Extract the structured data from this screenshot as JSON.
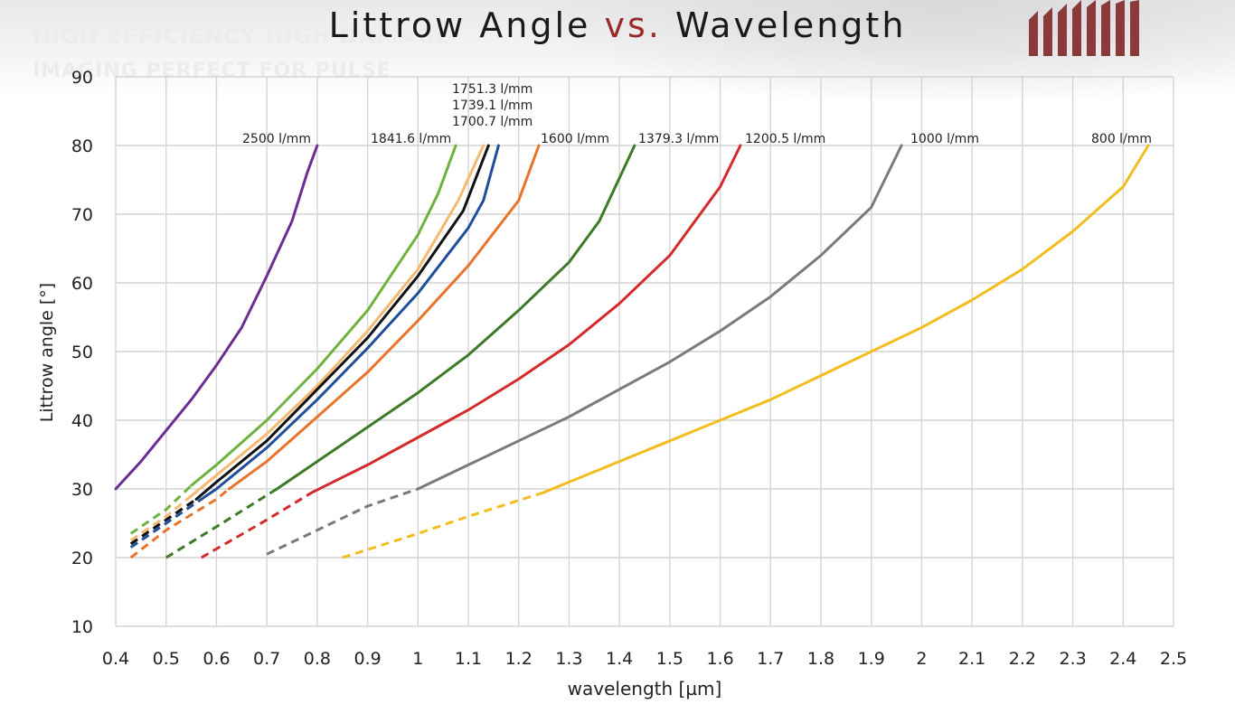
{
  "header": {
    "tagline_line1": "",
    "tagline_line2": "HIGH EFFICIENCY HIGH DAMAGE",
    "tagline_line3": "IMAGING PERFECT FOR PULSE"
  },
  "chart_data": {
    "type": "line",
    "title_part1": "Littrow Angle ",
    "title_vs": "vs.",
    "title_part2": " Wavelength",
    "xlabel": "wavelength [µm]",
    "ylabel": "Littrow angle [°]",
    "xlim": [
      0.4,
      2.5
    ],
    "ylim": [
      10,
      90
    ],
    "x_ticks": [
      0.4,
      0.5,
      0.6,
      0.7,
      0.8,
      0.9,
      1,
      1.1,
      1.2,
      1.3,
      1.4,
      1.5,
      1.6,
      1.7,
      1.8,
      1.9,
      2,
      2.1,
      2.2,
      2.3,
      2.4,
      2.5
    ],
    "y_ticks": [
      10,
      20,
      30,
      40,
      50,
      60,
      70,
      80,
      90
    ],
    "grid": true,
    "series": [
      {
        "name": "2500 l/mm",
        "color": "#6a2d91",
        "dashed": [],
        "solid": [
          [
            0.4,
            30
          ],
          [
            0.45,
            34
          ],
          [
            0.5,
            38.5
          ],
          [
            0.55,
            43
          ],
          [
            0.6,
            48
          ],
          [
            0.65,
            53.5
          ],
          [
            0.7,
            61
          ],
          [
            0.75,
            69
          ],
          [
            0.78,
            76
          ],
          [
            0.8,
            80
          ]
        ]
      },
      {
        "name": "1841.6 l/mm",
        "color": "#6db33f",
        "dashed": [
          [
            0.43,
            23.5
          ],
          [
            0.5,
            27
          ],
          [
            0.55,
            30.5
          ]
        ],
        "solid": [
          [
            0.55,
            30.5
          ],
          [
            0.6,
            33.5
          ],
          [
            0.7,
            40
          ],
          [
            0.8,
            47.5
          ],
          [
            0.9,
            56
          ],
          [
            1.0,
            67
          ],
          [
            1.04,
            73
          ],
          [
            1.075,
            80
          ]
        ]
      },
      {
        "name": "1751.3 l/mm",
        "color": "#f5b972",
        "dashed": [
          [
            0.43,
            22.5
          ],
          [
            0.5,
            26
          ],
          [
            0.55,
            29
          ]
        ],
        "solid": [
          [
            0.55,
            29
          ],
          [
            0.6,
            32
          ],
          [
            0.7,
            38
          ],
          [
            0.8,
            45
          ],
          [
            0.9,
            53
          ],
          [
            1.0,
            62
          ],
          [
            1.08,
            72
          ],
          [
            1.13,
            80
          ]
        ]
      },
      {
        "name": "1739.1 l/mm",
        "color": "#111111",
        "dashed": [
          [
            0.43,
            22
          ],
          [
            0.5,
            25.5
          ],
          [
            0.56,
            28.5
          ]
        ],
        "solid": [
          [
            0.56,
            28.5
          ],
          [
            0.6,
            31
          ],
          [
            0.7,
            37
          ],
          [
            0.8,
            44.5
          ],
          [
            0.9,
            52
          ],
          [
            1.0,
            61
          ],
          [
            1.09,
            70.5
          ],
          [
            1.14,
            80
          ]
        ]
      },
      {
        "name": "1700.7 l/mm",
        "color": "#1f4e9c",
        "dashed": [
          [
            0.43,
            21.5
          ],
          [
            0.5,
            25
          ],
          [
            0.57,
            28.5
          ]
        ],
        "solid": [
          [
            0.57,
            28.5
          ],
          [
            0.6,
            30
          ],
          [
            0.7,
            36
          ],
          [
            0.8,
            43
          ],
          [
            0.9,
            50.5
          ],
          [
            1.0,
            58.5
          ],
          [
            1.1,
            68
          ],
          [
            1.13,
            72
          ],
          [
            1.16,
            80
          ]
        ]
      },
      {
        "name": "1600 l/mm",
        "color": "#e8742a",
        "dashed": [
          [
            0.43,
            20
          ],
          [
            0.5,
            24
          ],
          [
            0.6,
            28.5
          ],
          [
            0.625,
            30
          ]
        ],
        "solid": [
          [
            0.625,
            30
          ],
          [
            0.7,
            34
          ],
          [
            0.8,
            40.5
          ],
          [
            0.9,
            47
          ],
          [
            1.0,
            54.5
          ],
          [
            1.1,
            62.5
          ],
          [
            1.2,
            72
          ],
          [
            1.24,
            80
          ]
        ]
      },
      {
        "name": "1379.3 l/mm",
        "color": "#3d7a27",
        "dashed": [
          [
            0.5,
            20
          ],
          [
            0.6,
            24.5
          ],
          [
            0.72,
            30
          ]
        ],
        "solid": [
          [
            0.72,
            30
          ],
          [
            0.8,
            34
          ],
          [
            0.9,
            39
          ],
          [
            1.0,
            44
          ],
          [
            1.1,
            49.5
          ],
          [
            1.2,
            56
          ],
          [
            1.3,
            63
          ],
          [
            1.36,
            69
          ],
          [
            1.43,
            80
          ]
        ]
      },
      {
        "name": "1200.5 l/mm",
        "color": "#d42a2a",
        "dashed": [
          [
            0.57,
            20
          ],
          [
            0.7,
            25.5
          ],
          [
            0.79,
            29.5
          ]
        ],
        "solid": [
          [
            0.79,
            29.5
          ],
          [
            0.9,
            33.5
          ],
          [
            1.0,
            37.5
          ],
          [
            1.1,
            41.5
          ],
          [
            1.2,
            46
          ],
          [
            1.3,
            51
          ],
          [
            1.4,
            57
          ],
          [
            1.5,
            64
          ],
          [
            1.6,
            74
          ],
          [
            1.64,
            80
          ]
        ]
      },
      {
        "name": "1000 l/mm",
        "color": "#7a7a7a",
        "dashed": [
          [
            0.7,
            20.5
          ],
          [
            0.8,
            24
          ],
          [
            0.9,
            27.5
          ],
          [
            1.0,
            30
          ]
        ],
        "solid": [
          [
            1.0,
            30
          ],
          [
            1.1,
            33.5
          ],
          [
            1.2,
            37
          ],
          [
            1.3,
            40.5
          ],
          [
            1.4,
            44.5
          ],
          [
            1.5,
            48.5
          ],
          [
            1.6,
            53
          ],
          [
            1.7,
            58
          ],
          [
            1.8,
            64
          ],
          [
            1.9,
            71
          ],
          [
            1.96,
            80
          ]
        ]
      },
      {
        "name": "800 l/mm",
        "color": "#f2bd1f",
        "dashed": [
          [
            0.85,
            20
          ],
          [
            1.0,
            23.5
          ],
          [
            1.1,
            26
          ],
          [
            1.25,
            29.5
          ]
        ],
        "solid": [
          [
            1.25,
            29.5
          ],
          [
            1.3,
            31
          ],
          [
            1.4,
            34
          ],
          [
            1.5,
            37
          ],
          [
            1.6,
            40
          ],
          [
            1.7,
            43
          ],
          [
            1.8,
            46.5
          ],
          [
            1.9,
            50
          ],
          [
            2.0,
            53.5
          ],
          [
            2.1,
            57.5
          ],
          [
            2.2,
            62
          ],
          [
            2.3,
            67.5
          ],
          [
            2.4,
            74
          ],
          [
            2.45,
            80
          ]
        ]
      }
    ]
  }
}
